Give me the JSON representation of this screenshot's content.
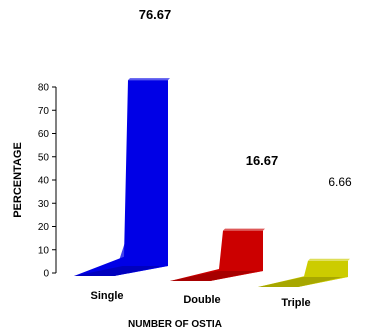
{
  "chart_data": {
    "type": "bar",
    "title": "",
    "xlabel": "NUMBER OF OSTIA",
    "ylabel": "PERCENTAGE",
    "ylim": [
      0,
      80
    ],
    "yticks": [
      0,
      10,
      20,
      30,
      40,
      50,
      60,
      70,
      80
    ],
    "yticklabels": [
      "0",
      "10",
      "20",
      "30",
      "40",
      "50",
      "60",
      "70",
      "80"
    ],
    "categories": [
      "Single",
      "Double",
      "Triple"
    ],
    "values": [
      76.67,
      16.67,
      6.66
    ],
    "data_labels": [
      "76.67",
      "16.67",
      "6.66"
    ],
    "grid": false,
    "legend": "none"
  },
  "colors": {
    "Single": "#0000e6",
    "Double": "#cc0000",
    "Triple": "#cccc00"
  }
}
